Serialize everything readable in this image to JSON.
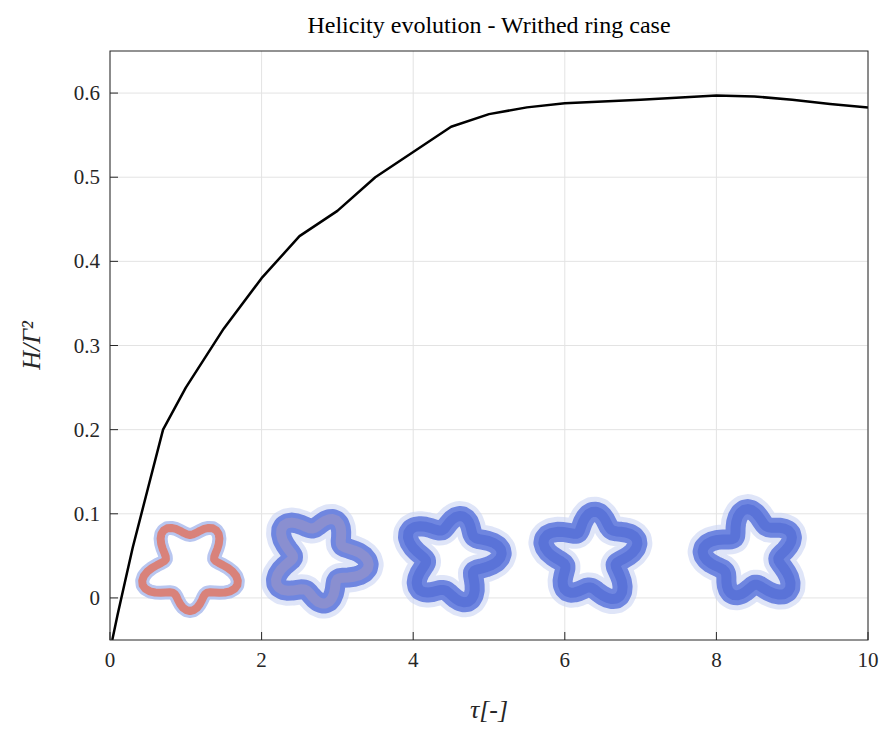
{
  "chart_data": {
    "type": "line",
    "title": "Helicity evolution - Writhed ring case",
    "x_label": "τ[-]",
    "y_label": "H/Γ²",
    "x": [
      0.03,
      0.1,
      0.2,
      0.3,
      0.5,
      0.7,
      1.0,
      1.5,
      2.0,
      2.5,
      3.0,
      3.5,
      4.0,
      4.5,
      5.0,
      5.5,
      6.0,
      7.0,
      8.0,
      8.5,
      9.0,
      9.5,
      10.0
    ],
    "series": [
      {
        "name": "H",
        "color": "#000000",
        "values": [
          -0.05,
          -0.02,
          0.02,
          0.06,
          0.13,
          0.2,
          0.25,
          0.32,
          0.38,
          0.43,
          0.46,
          0.5,
          0.53,
          0.56,
          0.575,
          0.583,
          0.588,
          0.592,
          0.597,
          0.596,
          0.592,
          0.587,
          0.583
        ]
      }
    ],
    "xlim": [
      0,
      10
    ],
    "ylim": [
      -0.05,
      0.65
    ],
    "xticks": [
      0,
      2,
      4,
      6,
      8,
      10
    ],
    "yticks": [
      0,
      0.1,
      0.2,
      0.3,
      0.4,
      0.5,
      0.6
    ],
    "grid": true
  }
}
